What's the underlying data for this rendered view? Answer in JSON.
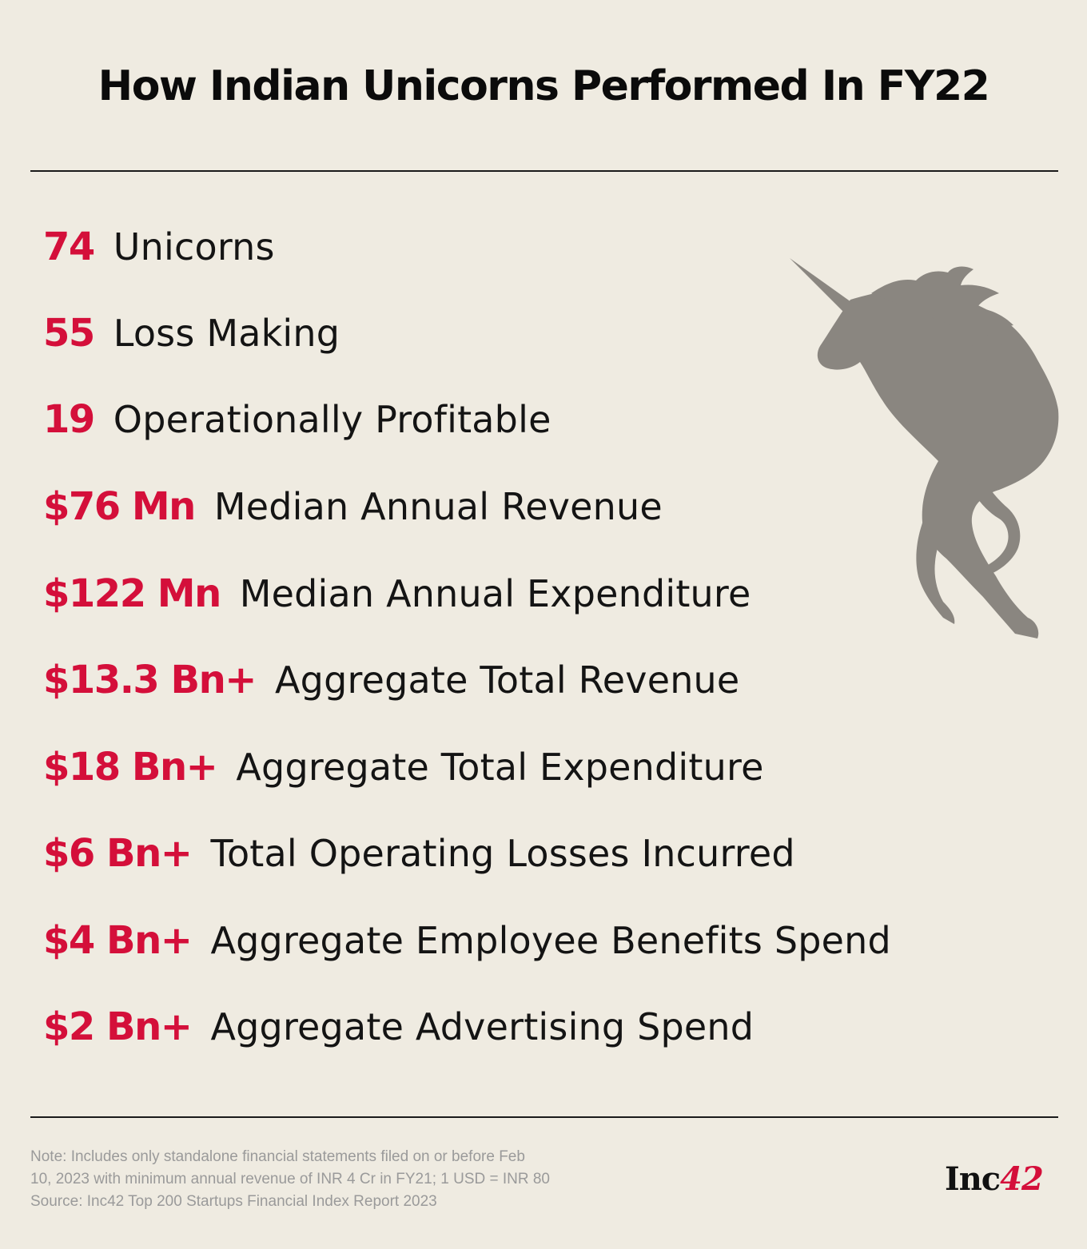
{
  "title": "How Indian Unicorns Performed In FY22",
  "stats": [
    {
      "value": "74",
      "label": "Unicorns"
    },
    {
      "value": "55",
      "label": "Loss Making"
    },
    {
      "value": "19",
      "label": "Operationally Profitable"
    },
    {
      "value": "$76 Mn",
      "label": "Median Annual Revenue"
    },
    {
      "value": "$122 Mn",
      "label": "Median Annual Expenditure"
    },
    {
      "value": "$13.3 Bn+",
      "label": "Aggregate Total Revenue"
    },
    {
      "value": "$18 Bn+",
      "label": "Aggregate Total Expenditure"
    },
    {
      "value": "$6 Bn+",
      "label": "Total Operating Losses Incurred"
    },
    {
      "value": "$4 Bn+",
      "label": "Aggregate Employee Benefits Spend"
    },
    {
      "value": "$2 Bn+",
      "label": "Aggregate Advertising Spend"
    }
  ],
  "footnote": {
    "line1": "Note: Includes only standalone financial statements filed on or before Feb",
    "line2": "10, 2023 with minimum annual revenue of INR 4 Cr in FY21; 1 USD = INR 80",
    "line3": "Source: Inc42 Top 200 Startups Financial Index Report 2023"
  },
  "brand": {
    "prefix": "Inc",
    "suffix": "42"
  },
  "colors": {
    "background": "#efebe1",
    "accent": "#d40f3a",
    "text": "#141414",
    "unicorn": "#8a8680",
    "muted": "#9a9a9a"
  },
  "illustration": "unicorn-silhouette"
}
